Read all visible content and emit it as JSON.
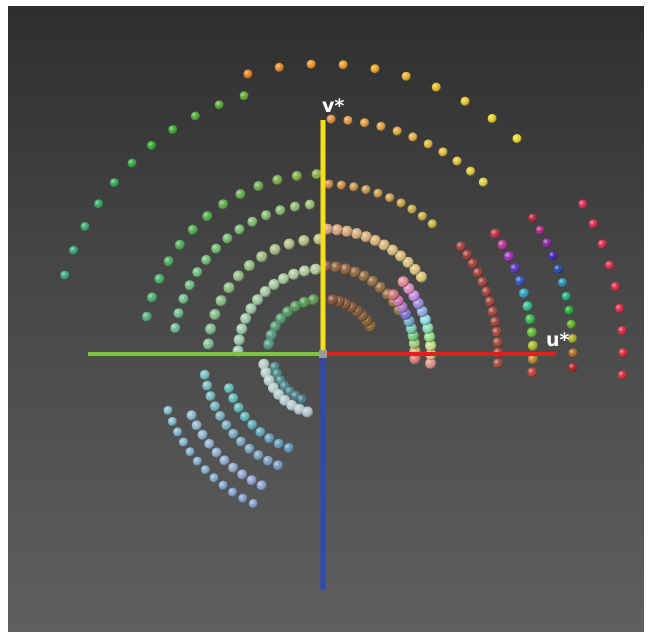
{
  "viewer": {
    "background_top": "#2e2e2e",
    "background_bottom": "#5f5f5f"
  },
  "axes": {
    "u_label": "u*",
    "v_label": "v*",
    "u_positive_color": "#e02020",
    "u_negative_color": "#7dc242",
    "v_positive_color": "#f2e01c",
    "v_negative_color": "#2e49b0"
  }
}
